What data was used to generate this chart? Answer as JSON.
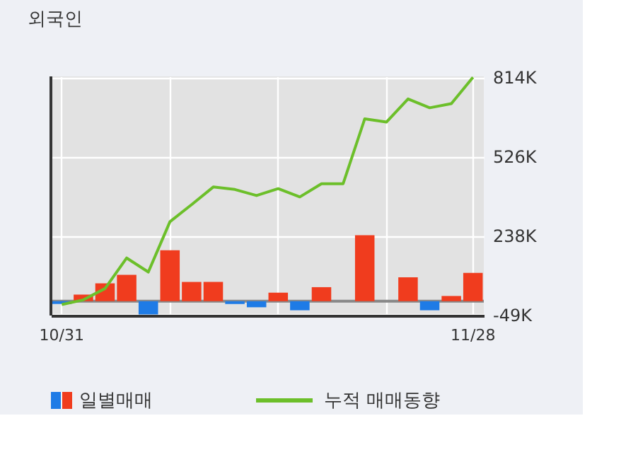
{
  "chart_data": {
    "type": "bar",
    "title": "외국인",
    "categories": [
      "10/31",
      null,
      null,
      null,
      null,
      null,
      null,
      null,
      null,
      null,
      null,
      null,
      null,
      null,
      null,
      null,
      null,
      null,
      null,
      "11/28"
    ],
    "series": [
      {
        "name": "일별매매",
        "color": "#f03c1e",
        "colors": [
          "#1e7be6",
          "#f03c1e",
          "#f03c1e",
          "#f03c1e",
          "#1e7be6",
          "#f03c1e",
          "#f03c1e",
          "#f03c1e",
          "#1e7be6",
          "#1e7be6",
          "#f03c1e",
          "#1e7be6",
          "#f03c1e",
          "#f03c1e",
          "#f03c1e",
          "#f03c1e",
          "#f03c1e",
          "#1e7be6",
          "#f03c1e",
          "#f03c1e"
        ],
        "values": [
          -10,
          24,
          65,
          96,
          -48,
          185,
          70,
          70,
          -10,
          -22,
          31,
          -33,
          51,
          0,
          240,
          0,
          87,
          -33,
          19,
          103
        ]
      },
      {
        "name": "누적 매매동향",
        "type": "line",
        "color": "#6cbf2a",
        "values": [
          -12,
          5,
          46,
          157,
          106,
          289,
          351,
          415,
          406,
          384,
          409,
          379,
          427,
          427,
          663,
          651,
          735,
          703,
          718,
          814
        ]
      }
    ],
    "ylim": [
      -52,
      817
    ],
    "yticks": [
      {
        "value": -49,
        "label": "-49K"
      },
      {
        "value": 238,
        "label": "238K"
      },
      {
        "value": 526,
        "label": "526K"
      },
      {
        "value": 814,
        "label": "814K"
      }
    ],
    "ref_lines": [
      {
        "axis": "y",
        "value": 0,
        "color": "#888888"
      }
    ],
    "grid": true,
    "legend": "bottom",
    "marker": "none",
    "line_style": "solid"
  }
}
